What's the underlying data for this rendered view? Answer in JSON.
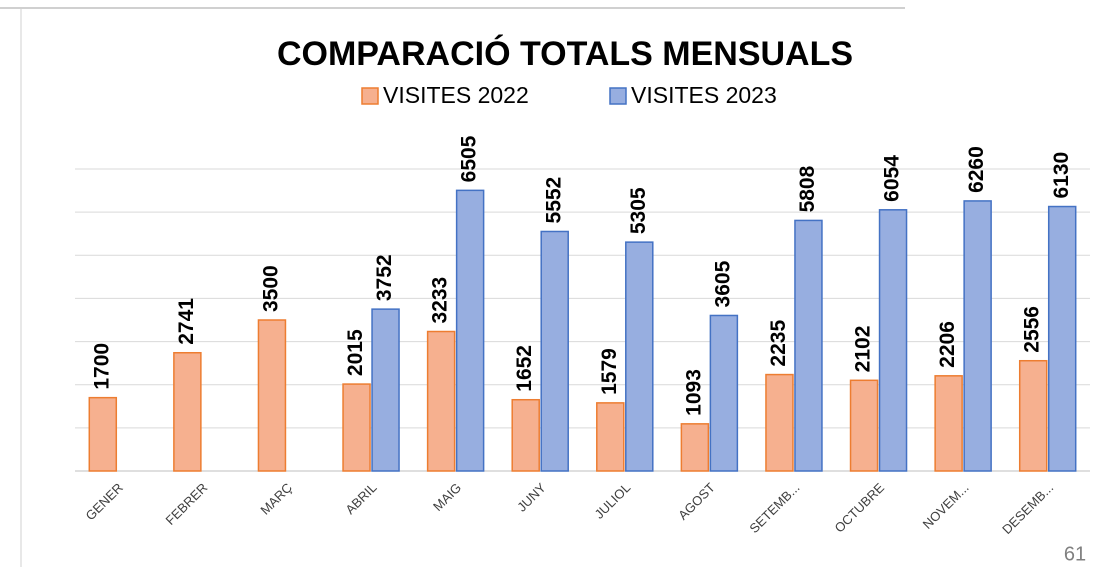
{
  "chart_data": {
    "type": "bar",
    "title": "COMPARACIÓ TOTALS MENSUALS",
    "categories": [
      "GENER",
      "FEBRER",
      "MARÇ",
      "ABRIL",
      "MAIG",
      "JUNY",
      "JULIOL",
      "AGOST",
      "SETEMB...",
      "OCTUBRE",
      "NOVEM...",
      "DESEMB..."
    ],
    "series": [
      {
        "name": "VISITES 2022",
        "color": "#ed7d31",
        "fill": "#f6b08f",
        "values": [
          1700,
          2741,
          3500,
          2015,
          3233,
          1652,
          1579,
          1093,
          2235,
          2102,
          2206,
          2556
        ]
      },
      {
        "name": "VISITES 2023",
        "color": "#4472c4",
        "fill": "#97aee0",
        "values": [
          null,
          null,
          null,
          3752,
          6505,
          5552,
          5305,
          3605,
          5808,
          6054,
          6260,
          6130
        ]
      }
    ],
    "ylim": [
      0,
      7000
    ],
    "yticks": [
      0,
      1000,
      2000,
      3000,
      4000,
      5000,
      6000,
      7000
    ],
    "grid": true,
    "legend": "top"
  },
  "page_number": "61"
}
